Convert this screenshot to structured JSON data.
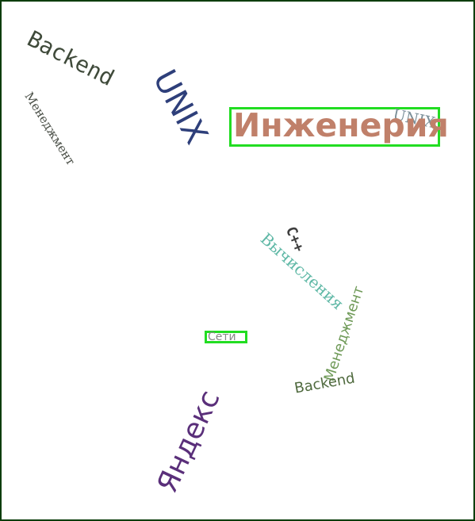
{
  "words": {
    "backend_top": "Backend",
    "unix_big": "UNIX",
    "menedzhment_left": "Менеджмент",
    "inzheneriya": "Инженерия",
    "unix_small": "UNIX",
    "cpp": "C++",
    "vychisleniya": "Вычисления",
    "menedzhment_right": "Менеджмент",
    "seti": "Сети",
    "backend_bottom": "Backend",
    "yandex": "Яндекс"
  },
  "colors": {
    "frame_border": "#0b3d0b",
    "highlight_box": "#22dd22",
    "backend_top": "#3f4a3a",
    "unix_big": "#2e3f7a",
    "menedzhment_left": "#4a4f47",
    "inzheneriya": "#c0806a",
    "unix_small": "#7a8f98",
    "cpp": "#3e3e3e",
    "vychisleniya": "#5fb8a6",
    "menedzhment_right": "#6f9a58",
    "seti": "#888888",
    "backend_bottom": "#4f6a3e",
    "yandex": "#5a2f7a"
  }
}
